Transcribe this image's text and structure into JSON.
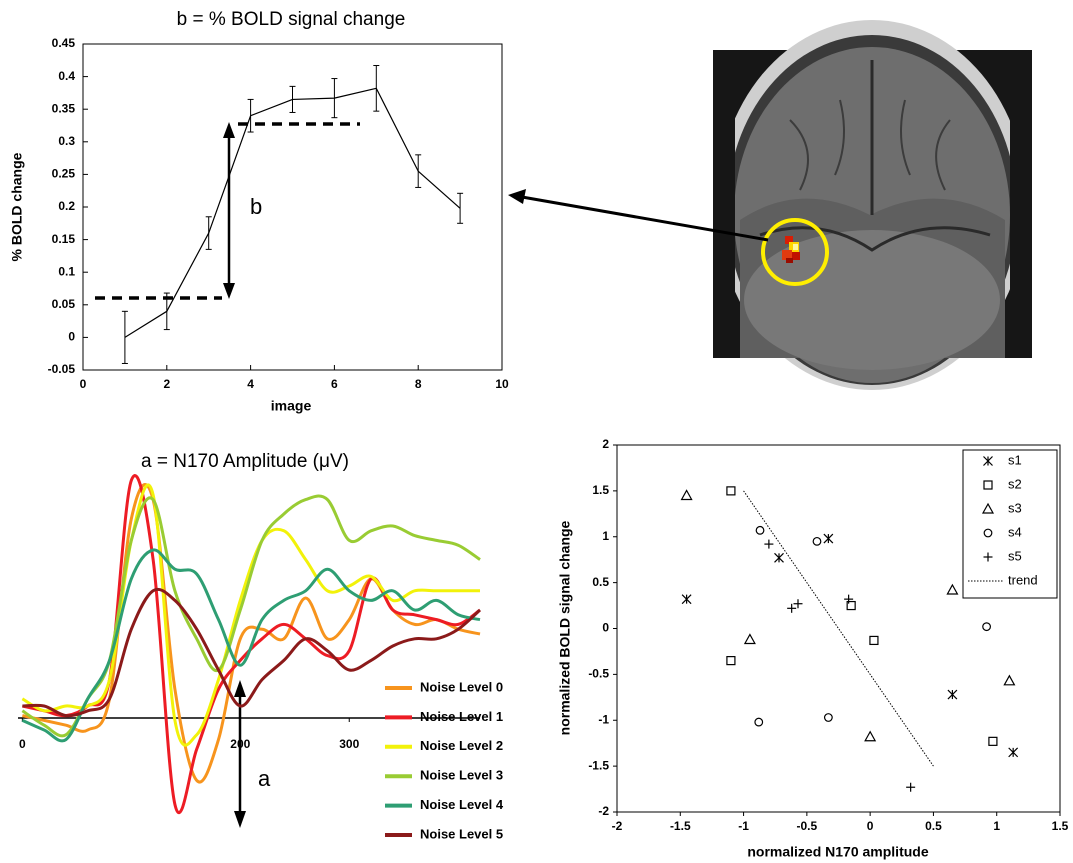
{
  "chart_data": [
    {
      "type": "line",
      "title": "b = % BOLD signal change",
      "xlabel": "image",
      "ylabel": "% BOLD change",
      "x": [
        1,
        2,
        3,
        4,
        5,
        6,
        7,
        8,
        9
      ],
      "series": [
        {
          "color": "#000000",
          "values": [
            0,
            0.04,
            0.16,
            0.34,
            0.365,
            0.367,
            0.382,
            0.255,
            0.198
          ],
          "errors": [
            0.04,
            0.028,
            0.025,
            0.025,
            0.02,
            0.03,
            0.035,
            0.025,
            0.023
          ]
        }
      ],
      "xlim": [
        0,
        10
      ],
      "xticks": [
        0,
        2,
        4,
        6,
        8,
        10
      ],
      "ylim": [
        -0.05,
        0.45
      ],
      "yticks": [
        -0.05,
        0,
        0.05,
        0.1,
        0.15,
        0.2,
        0.25,
        0.3,
        0.35,
        0.4,
        0.45
      ],
      "frame": true,
      "smooth": false,
      "annotation": "b"
    },
    {
      "type": "line",
      "title": "a = N170 Amplitude (μV)",
      "x": [
        0,
        20,
        40,
        60,
        80,
        100,
        120,
        140,
        160,
        180,
        200,
        220,
        240,
        260,
        280,
        300,
        320,
        340,
        360,
        380,
        400,
        420
      ],
      "series": [
        {
          "name": "Noise Level 0",
          "color": "#f7941d",
          "values": [
            0.1,
            -0.1,
            -0.3,
            -0.5,
            0.8,
            8.3,
            9.1,
            1.2,
            -2.6,
            -0.9,
            3.3,
            3.7,
            3.3,
            5.0,
            3.3,
            4.1,
            5.8,
            4.5,
            3.9,
            4.1,
            3.7,
            3.5
          ]
        },
        {
          "name": "Noise Level 1",
          "color": "#ed1c24",
          "values": [
            0.5,
            0.3,
            0.1,
            0.5,
            1.6,
            9.9,
            6.6,
            -3.6,
            -1.3,
            1.2,
            2.4,
            3.3,
            3.9,
            3.3,
            2.6,
            2.8,
            5.8,
            4.5,
            4.3,
            4.1,
            3.9,
            4.5
          ]
        },
        {
          "name": "Noise Level 2",
          "color": "#f2f20a",
          "values": [
            0.8,
            0.3,
            0.5,
            0.5,
            1.6,
            7.4,
            9.3,
            -0.1,
            -0.7,
            1.6,
            4.9,
            7.4,
            7.8,
            6.6,
            5.3,
            5.5,
            5.9,
            4.9,
            5.3,
            5.3,
            5.3,
            5.3
          ]
        },
        {
          "name": "Noise Level 3",
          "color": "#99cc33",
          "values": [
            0.3,
            -0.3,
            -0.7,
            0.8,
            2.4,
            7.4,
            9.1,
            5.3,
            3.3,
            2.0,
            4.5,
            7.4,
            8.5,
            9.1,
            9.1,
            7.4,
            7.8,
            8.0,
            7.6,
            7.4,
            7.2,
            6.6
          ]
        },
        {
          "name": "Noise Level 4",
          "color": "#2e9e73",
          "values": [
            -0.1,
            -0.5,
            -0.9,
            0.8,
            2.4,
            5.8,
            7.0,
            6.2,
            6.0,
            4.1,
            2.2,
            4.1,
            4.9,
            5.3,
            6.2,
            5.3,
            4.9,
            5.3,
            4.5,
            4.9,
            4.3,
            4.1
          ]
        },
        {
          "name": "Noise Level 5",
          "color": "#8b1a1a",
          "values": [
            0.5,
            0.5,
            0.1,
            0.3,
            0.8,
            3.7,
            5.3,
            4.9,
            3.7,
            2.0,
            0.5,
            1.6,
            2.4,
            3.3,
            2.8,
            2.0,
            2.4,
            3.0,
            3.3,
            3.3,
            3.7,
            4.5
          ]
        }
      ],
      "xlim": [
        -4,
        420
      ],
      "xticks": [
        0,
        200,
        300
      ],
      "ylim": [
        -6,
        10.5
      ],
      "frame": false,
      "smooth": true,
      "legend": "lower right",
      "annotation": "a"
    },
    {
      "type": "scatter",
      "xlabel": "normalized N170 amplitude",
      "ylabel": "normalized BOLD signal change",
      "series": [
        {
          "name": "s1",
          "marker": "asterisk",
          "color": "#000000",
          "x": [
            -1.45,
            -0.72,
            -0.33,
            0.65,
            1.13
          ],
          "values": [
            0.32,
            0.77,
            0.98,
            -0.72,
            -1.35
          ]
        },
        {
          "name": "s2",
          "marker": "square",
          "color": "#000000",
          "x": [
            -1.1,
            -1.1,
            -0.15,
            0.03,
            0.97
          ],
          "values": [
            1.5,
            -0.35,
            0.25,
            -0.13,
            -1.23
          ]
        },
        {
          "name": "s3",
          "marker": "triangle",
          "color": "#000000",
          "x": [
            -1.45,
            -0.95,
            0,
            0.65,
            1.1
          ],
          "values": [
            1.45,
            -0.12,
            -1.18,
            0.42,
            -0.57
          ]
        },
        {
          "name": "s4",
          "marker": "circle",
          "color": "#000000",
          "x": [
            -0.87,
            -0.88,
            -0.33,
            -0.42,
            0.92
          ],
          "values": [
            1.07,
            -1.02,
            -0.97,
            0.95,
            0.02
          ]
        },
        {
          "name": "s5",
          "marker": "plus",
          "color": "#000000",
          "x": [
            -0.8,
            -0.62,
            -0.57,
            -0.17,
            0.32
          ],
          "values": [
            0.92,
            0.22,
            0.27,
            0.32,
            -1.73
          ]
        },
        {
          "name": "trend",
          "marker": "dotted-line",
          "color": "#000000",
          "x": [
            -1,
            0.5
          ],
          "values": [
            1.5,
            -1.5
          ]
        }
      ],
      "xlim": [
        -2,
        1.5
      ],
      "xticks": [
        -2,
        -1.5,
        -1,
        -0.5,
        0,
        0.5,
        1,
        1.5
      ],
      "ylim": [
        -2,
        2
      ],
      "yticks": [
        -2,
        -1.5,
        -1,
        -0.5,
        0,
        0.5,
        1,
        1.5,
        2
      ],
      "frame": true,
      "legend": "upper right"
    }
  ]
}
